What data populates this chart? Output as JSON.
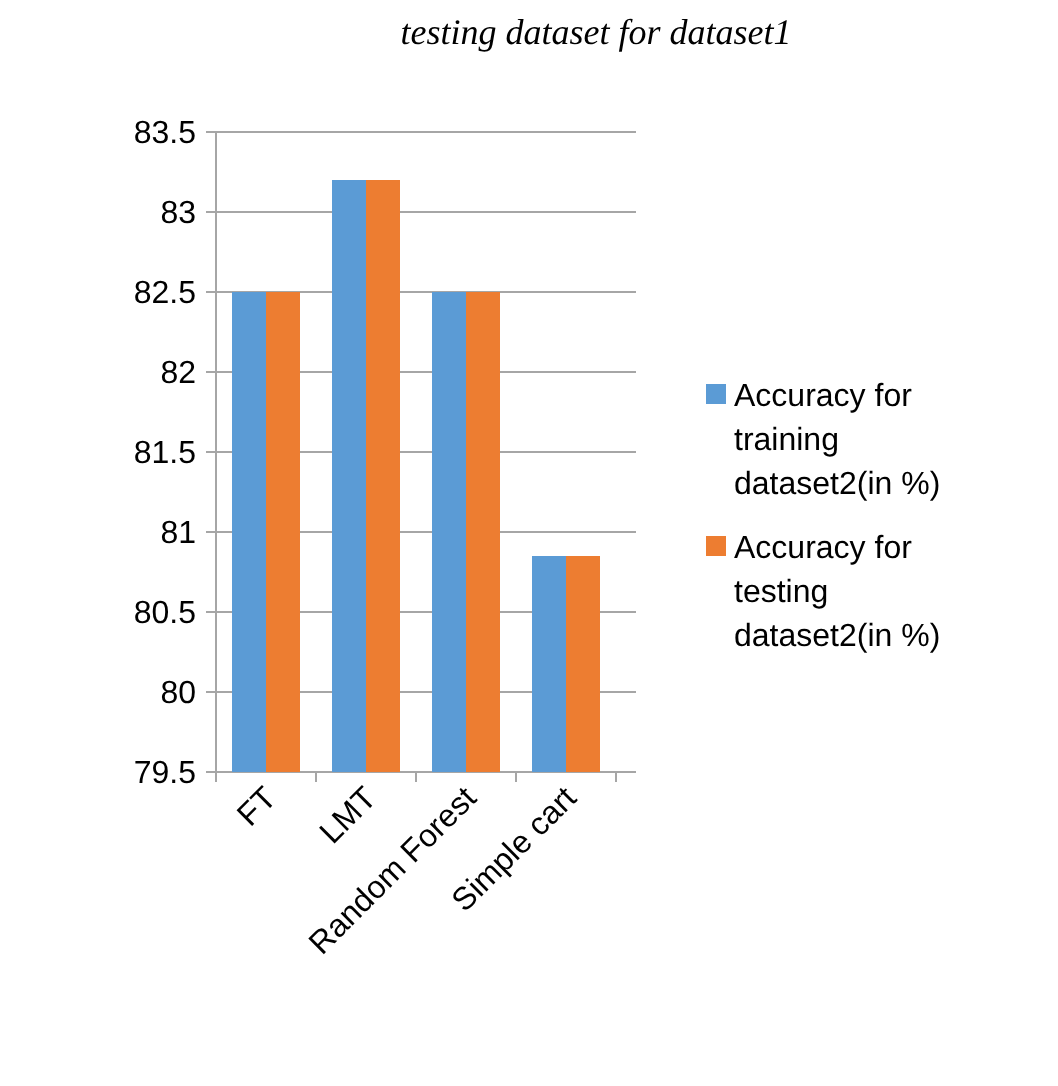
{
  "chart_data": {
    "type": "bar",
    "title": "testing dataset for dataset1",
    "categories": [
      "FT",
      "LMT",
      "Random Forest",
      "Simple cart"
    ],
    "series": [
      {
        "name": "Accuracy for training dataset2(in %)",
        "color": "#5b9bd5",
        "values": [
          82.5,
          83.2,
          82.5,
          80.85
        ]
      },
      {
        "name": "Accuracy for testing dataset2(in %)",
        "color": "#ed7d31",
        "values": [
          82.5,
          83.2,
          82.5,
          80.85
        ]
      }
    ],
    "ylim": [
      79.5,
      83.5
    ],
    "yticks": [
      {
        "value": 79.5,
        "label": "79.5"
      },
      {
        "value": 80,
        "label": "80"
      },
      {
        "value": 80.5,
        "label": "80.5"
      },
      {
        "value": 81,
        "label": "81"
      },
      {
        "value": 81.5,
        "label": "81.5"
      },
      {
        "value": 82,
        "label": "82"
      },
      {
        "value": 82.5,
        "label": "82.5"
      },
      {
        "value": 83,
        "label": "83"
      },
      {
        "value": 83.5,
        "label": "83.5"
      }
    ],
    "grid": "y",
    "legend": "right"
  }
}
